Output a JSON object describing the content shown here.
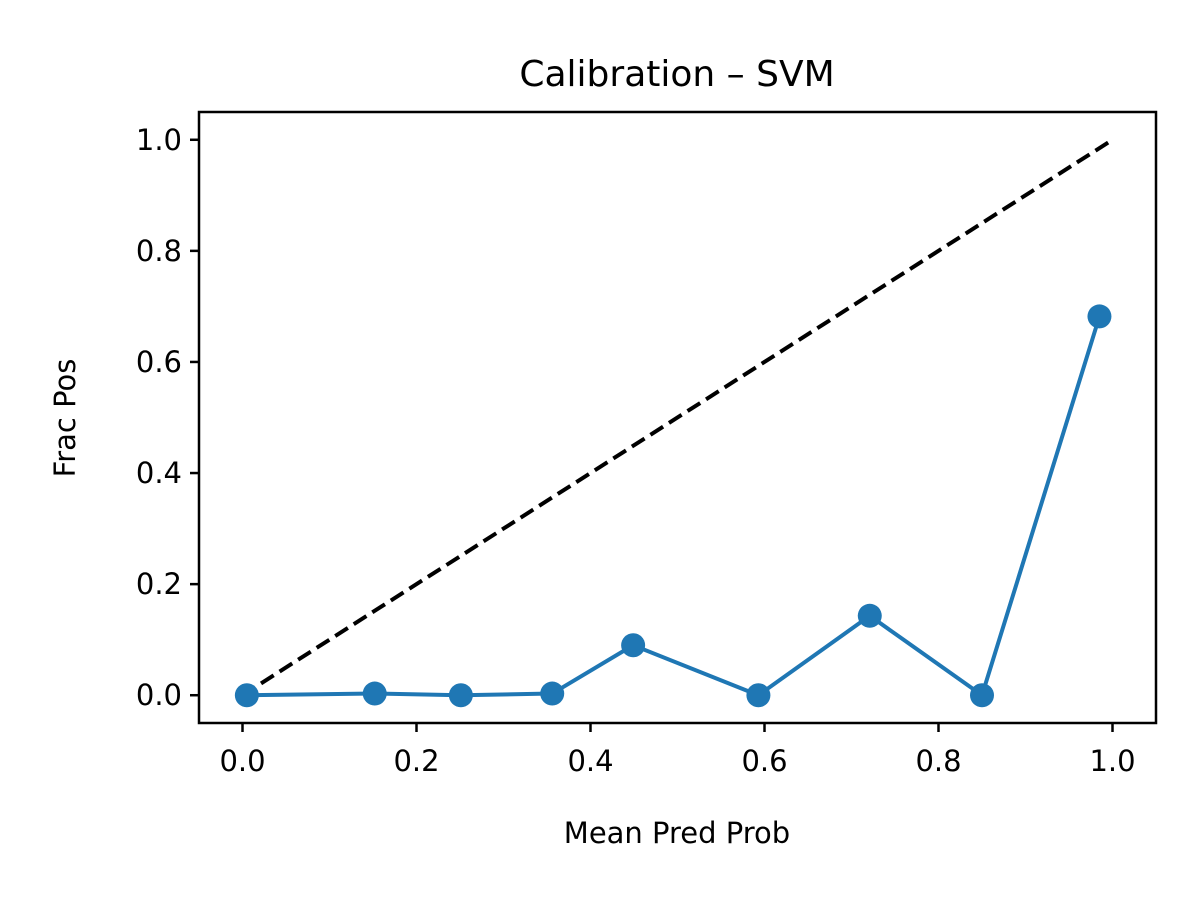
{
  "chart_data": {
    "type": "line",
    "title": "Calibration – SVM",
    "xlabel": "Mean Pred Prob",
    "ylabel": "Frac Pos",
    "xlim": [
      -0.05,
      1.05
    ],
    "ylim": [
      -0.05,
      1.05
    ],
    "x_ticks": [
      0.0,
      0.2,
      0.4,
      0.6,
      0.8,
      1.0
    ],
    "x_tick_labels": [
      "0.0",
      "0.2",
      "0.4",
      "0.6",
      "0.8",
      "1.0"
    ],
    "y_ticks": [
      0.0,
      0.2,
      0.4,
      0.6,
      0.8,
      1.0
    ],
    "y_tick_labels": [
      "0.0",
      "0.2",
      "0.4",
      "0.6",
      "0.8",
      "1.0"
    ],
    "grid": false,
    "series": [
      {
        "style": "solid line with circle markers",
        "color": "#1f77b4",
        "x": [
          0.005,
          0.152,
          0.251,
          0.356,
          0.449,
          0.593,
          0.721,
          0.85,
          0.985
        ],
        "y": [
          0.0,
          0.003,
          0.0,
          0.003,
          0.09,
          0.0,
          0.143,
          0.0,
          0.682
        ]
      },
      {
        "style": "dashed reference line",
        "color": "#000000",
        "x": [
          0.0,
          1.0
        ],
        "y": [
          0.0,
          1.0
        ]
      }
    ]
  }
}
